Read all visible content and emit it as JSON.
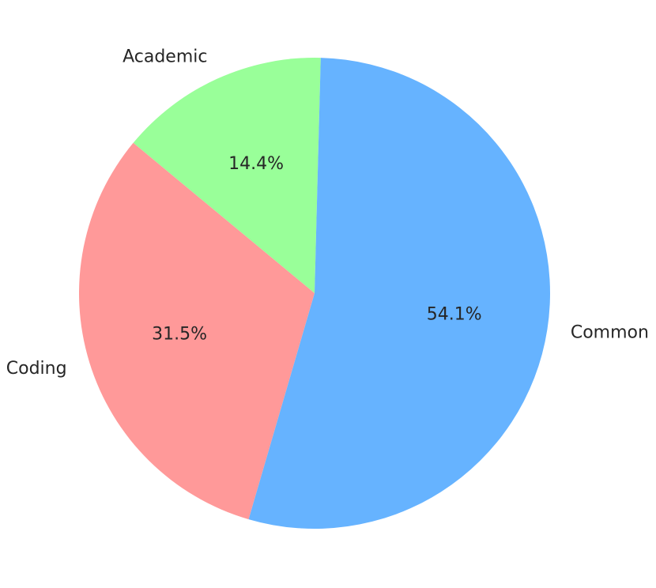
{
  "chart_data": {
    "type": "pie",
    "categories": [
      "Academic",
      "Coding",
      "Common"
    ],
    "values": [
      14.4,
      31.5,
      54.1
    ],
    "value_labels": [
      "14.4%",
      "31.5%",
      "54.1%"
    ],
    "colors": [
      "#99ff99",
      "#ff9999",
      "#66b3ff"
    ]
  }
}
